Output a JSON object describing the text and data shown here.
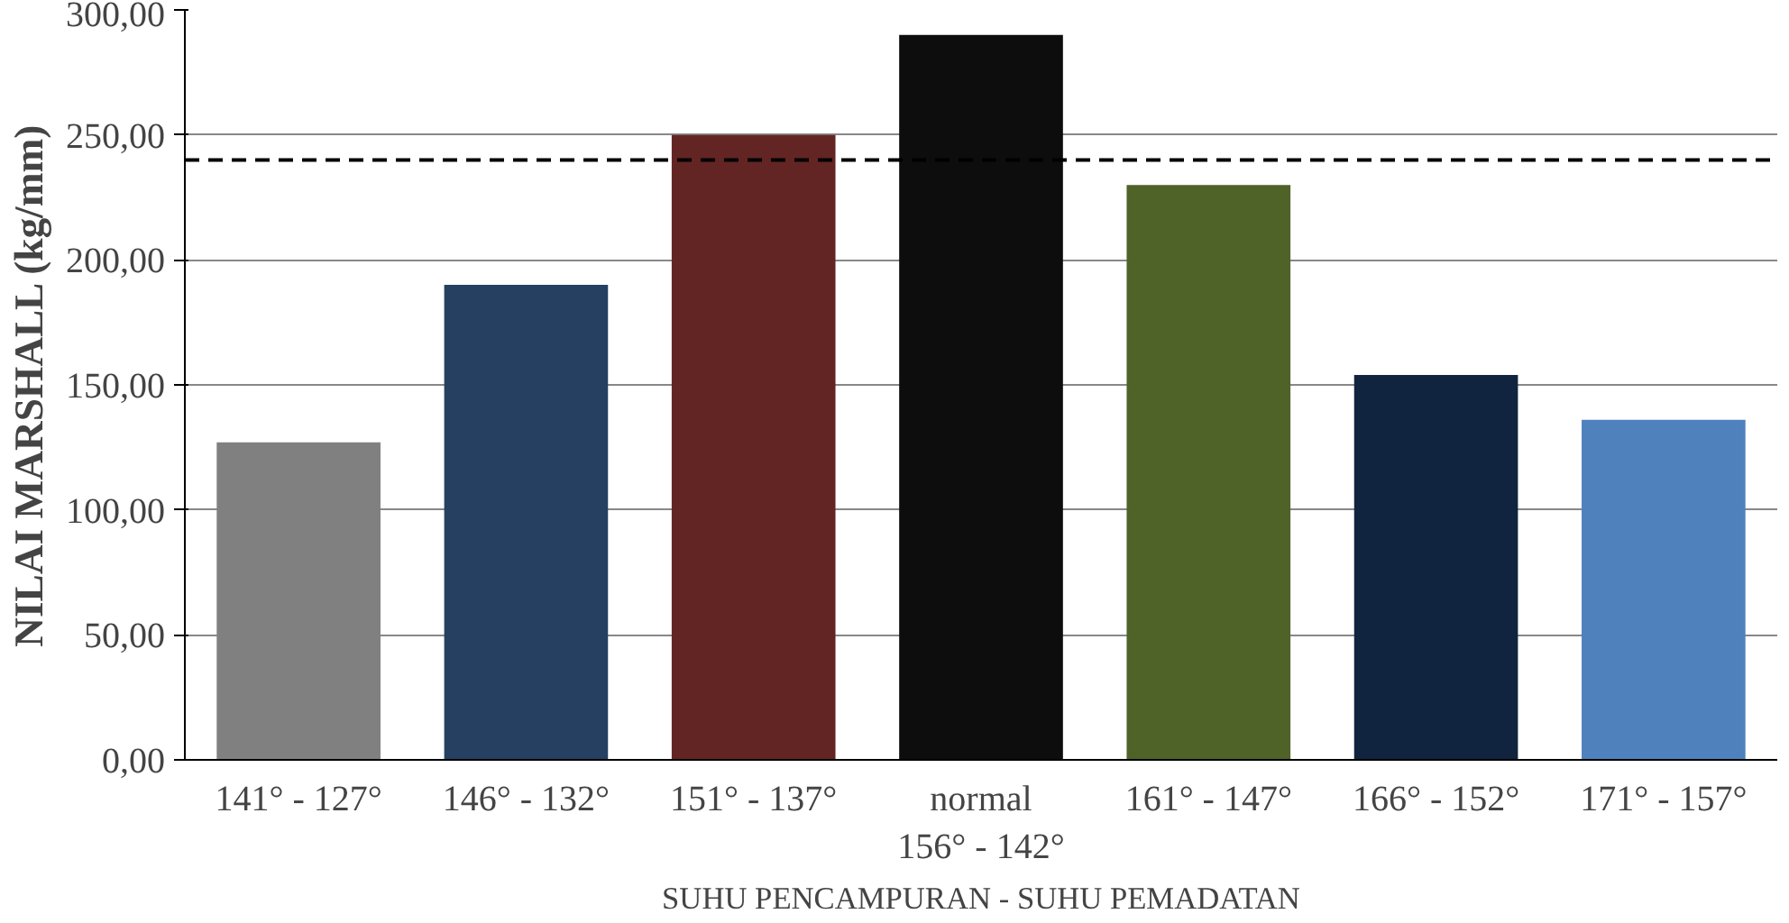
{
  "chart_data": {
    "type": "bar",
    "xlabel": "SUHU PENCAMPURAN - SUHU PEMADATAN",
    "ylabel": "NILAI MARSHALL (kg/mm)",
    "categories": [
      "141° - 127°",
      "146° - 132°",
      "151° - 137°",
      "normal\n156° - 142°",
      "161° - 147°",
      "166° - 152°",
      "171° - 157°"
    ],
    "values": [
      127,
      190,
      250,
      290,
      230,
      154,
      136
    ],
    "colors": [
      "#808080",
      "#254061",
      "#632523",
      "#0d0d0d",
      "#4f6228",
      "#10243f",
      "#4f81bd"
    ],
    "ylim": [
      0,
      300
    ],
    "yticks": [
      {
        "value": 0,
        "label": "0,00"
      },
      {
        "value": 50,
        "label": "50,00"
      },
      {
        "value": 100,
        "label": "100,00"
      },
      {
        "value": 150,
        "label": "150,00"
      },
      {
        "value": 200,
        "label": "200,00"
      },
      {
        "value": 250,
        "label": "250,00"
      },
      {
        "value": 300,
        "label": "300,00"
      }
    ],
    "grid": "y",
    "ref_lines": [
      {
        "axis": "y",
        "value": 240,
        "line_style": "dashed",
        "color": "#000000"
      }
    ]
  }
}
